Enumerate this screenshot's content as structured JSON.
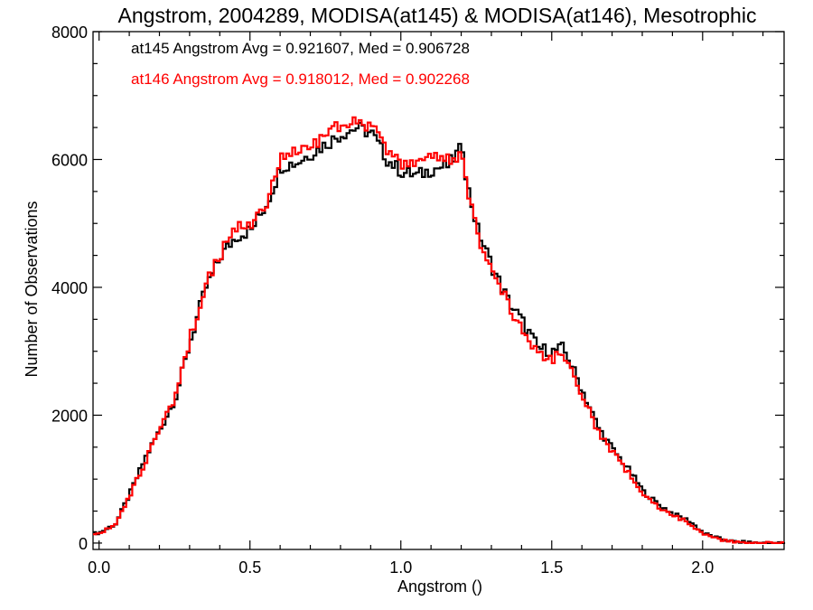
{
  "chart_data": {
    "type": "line",
    "title": "Angstrom, 2004289, MODISA(at145) & MODISA(at146), Mesotrophic",
    "xlabel": "Angstrom ()",
    "ylabel": "Number of Observations",
    "xlim": [
      -0.02,
      2.27
    ],
    "ylim": [
      -100,
      8000
    ],
    "xticks": [
      0.0,
      0.5,
      1.0,
      1.5,
      2.0
    ],
    "xtick_labels": [
      "0.0",
      "0.5",
      "1.0",
      "1.5",
      "2.0"
    ],
    "yticks": [
      0,
      2000,
      4000,
      6000,
      8000
    ],
    "ytick_labels": [
      "0",
      "2000",
      "4000",
      "6000",
      "8000"
    ],
    "grid": false,
    "legend_position": "top-left",
    "series": [
      {
        "name": "at145",
        "color": "#000000",
        "legend_text": "at145 Angstrom Avg = 0.921607, Med = 0.906728",
        "x": [
          -0.02,
          0.0,
          0.05,
          0.1,
          0.15,
          0.2,
          0.25,
          0.3,
          0.35,
          0.4,
          0.45,
          0.5,
          0.55,
          0.6,
          0.65,
          0.7,
          0.75,
          0.8,
          0.85,
          0.9,
          0.95,
          1.0,
          1.05,
          1.1,
          1.15,
          1.2,
          1.21,
          1.22,
          1.25,
          1.3,
          1.35,
          1.4,
          1.45,
          1.5,
          1.53,
          1.55,
          1.6,
          1.65,
          1.7,
          1.75,
          1.8,
          1.85,
          1.9,
          1.95,
          2.0,
          2.05,
          2.1,
          2.15,
          2.2,
          2.27
        ],
        "y": [
          150,
          170,
          300,
          800,
          1350,
          1800,
          2300,
          3200,
          4000,
          4500,
          4800,
          4900,
          5300,
          5900,
          5950,
          6100,
          6250,
          6400,
          6500,
          6400,
          6000,
          5800,
          5750,
          5850,
          5900,
          6200,
          5800,
          5500,
          4900,
          4300,
          3800,
          3450,
          3050,
          3000,
          3050,
          2900,
          2350,
          1800,
          1450,
          1150,
          800,
          600,
          450,
          350,
          150,
          70,
          20,
          10,
          0,
          0
        ]
      },
      {
        "name": "at146",
        "color": "#ff0000",
        "legend_text": "at146 Angstrom Avg = 0.918012, Med = 0.902268",
        "x": [
          -0.02,
          0.0,
          0.05,
          0.1,
          0.15,
          0.2,
          0.25,
          0.3,
          0.35,
          0.4,
          0.45,
          0.5,
          0.55,
          0.6,
          0.65,
          0.7,
          0.75,
          0.8,
          0.85,
          0.9,
          0.95,
          1.0,
          1.05,
          1.1,
          1.15,
          1.2,
          1.21,
          1.22,
          1.25,
          1.3,
          1.35,
          1.4,
          1.45,
          1.5,
          1.53,
          1.55,
          1.6,
          1.65,
          1.7,
          1.75,
          1.8,
          1.85,
          1.9,
          1.95,
          2.0,
          2.05,
          2.1,
          2.15,
          2.2,
          2.27
        ],
        "y": [
          140,
          160,
          280,
          780,
          1300,
          1780,
          2300,
          3250,
          4050,
          4550,
          4900,
          5000,
          5350,
          6050,
          6100,
          6200,
          6450,
          6550,
          6650,
          6500,
          6100,
          5900,
          5900,
          6000,
          6000,
          6100,
          5700,
          5400,
          4800,
          4200,
          3750,
          3350,
          2950,
          2900,
          2950,
          2800,
          2300,
          1750,
          1400,
          1100,
          750,
          550,
          420,
          320,
          130,
          60,
          15,
          5,
          0,
          0
        ]
      }
    ]
  }
}
